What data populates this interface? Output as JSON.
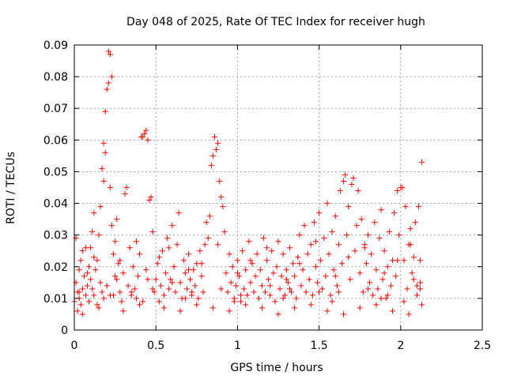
{
  "chart_data": {
    "type": "scatter",
    "title": "Day 048 of 2025, Rate Of TEC Index for receiver hugh",
    "xlabel": "GPS time / hours",
    "ylabel": "ROTI / TECUs",
    "xlim": [
      0,
      2.5
    ],
    "ylim": [
      0,
      0.09
    ],
    "x_ticks": [
      0,
      0.5,
      1,
      1.5,
      2,
      2.5
    ],
    "x_tick_labels": [
      "0",
      "0.5",
      "1",
      "1.5",
      "2",
      "2.5"
    ],
    "y_ticks": [
      0,
      0.01,
      0.02,
      0.03,
      0.04,
      0.05,
      0.06,
      0.07,
      0.08,
      0.09
    ],
    "y_tick_labels": [
      "0",
      "0.01",
      "0.02",
      "0.03",
      "0.04",
      "0.05",
      "0.06",
      "0.07",
      "0.08",
      "0.09"
    ],
    "grid": true,
    "marker": "plus",
    "color": "#ff0000",
    "points": [
      [
        0.0,
        0.009
      ],
      [
        0.01,
        0.015
      ],
      [
        0.01,
        0.029
      ],
      [
        0.02,
        0.012
      ],
      [
        0.02,
        0.006
      ],
      [
        0.03,
        0.019
      ],
      [
        0.03,
        0.01
      ],
      [
        0.04,
        0.022
      ],
      [
        0.04,
        0.008
      ],
      [
        0.05,
        0.013
      ],
      [
        0.05,
        0.025
      ],
      [
        0.06,
        0.017
      ],
      [
        0.07,
        0.011
      ],
      [
        0.07,
        0.026
      ],
      [
        0.08,
        0.014
      ],
      [
        0.09,
        0.02
      ],
      [
        0.09,
        0.009
      ],
      [
        0.1,
        0.016
      ],
      [
        0.11,
        0.013
      ],
      [
        0.11,
        0.031
      ],
      [
        0.12,
        0.037
      ],
      [
        0.12,
        0.011
      ],
      [
        0.13,
        0.019
      ],
      [
        0.14,
        0.022
      ],
      [
        0.14,
        0.008
      ],
      [
        0.15,
        0.03
      ],
      [
        0.16,
        0.015
      ],
      [
        0.16,
        0.039
      ],
      [
        0.17,
        0.051
      ],
      [
        0.17,
        0.012
      ],
      [
        0.18,
        0.047
      ],
      [
        0.18,
        0.059
      ],
      [
        0.19,
        0.056
      ],
      [
        0.19,
        0.069
      ],
      [
        0.2,
        0.076
      ],
      [
        0.21,
        0.078
      ],
      [
        0.21,
        0.088
      ],
      [
        0.22,
        0.087
      ],
      [
        0.23,
        0.08
      ],
      [
        0.22,
        0.045
      ],
      [
        0.23,
        0.033
      ],
      [
        0.24,
        0.024
      ],
      [
        0.24,
        0.011
      ],
      [
        0.25,
        0.028
      ],
      [
        0.26,
        0.035
      ],
      [
        0.26,
        0.016
      ],
      [
        0.27,
        0.021
      ],
      [
        0.28,
        0.012
      ],
      [
        0.29,
        0.009
      ],
      [
        0.3,
        0.018
      ],
      [
        0.31,
        0.043
      ],
      [
        0.32,
        0.045
      ],
      [
        0.33,
        0.014
      ],
      [
        0.34,
        0.026
      ],
      [
        0.35,
        0.011
      ],
      [
        0.36,
        0.02
      ],
      [
        0.37,
        0.013
      ],
      [
        0.38,
        0.01
      ],
      [
        0.39,
        0.017
      ],
      [
        0.4,
        0.024
      ],
      [
        0.41,
        0.061
      ],
      [
        0.42,
        0.061
      ],
      [
        0.43,
        0.062
      ],
      [
        0.44,
        0.063
      ],
      [
        0.45,
        0.06
      ],
      [
        0.44,
        0.019
      ],
      [
        0.46,
        0.041
      ],
      [
        0.47,
        0.042
      ],
      [
        0.48,
        0.031
      ],
      [
        0.49,
        0.012
      ],
      [
        0.5,
        0.016
      ],
      [
        0.51,
        0.021
      ],
      [
        0.52,
        0.009
      ],
      [
        0.53,
        0.014
      ],
      [
        0.54,
        0.025
      ],
      [
        0.55,
        0.011
      ],
      [
        0.56,
        0.018
      ],
      [
        0.57,
        0.029
      ],
      [
        0.58,
        0.013
      ],
      [
        0.59,
        0.016
      ],
      [
        0.6,
        0.033
      ],
      [
        0.61,
        0.02
      ],
      [
        0.62,
        0.012
      ],
      [
        0.63,
        0.027
      ],
      [
        0.64,
        0.037
      ],
      [
        0.65,
        0.015
      ],
      [
        0.66,
        0.01
      ],
      [
        0.67,
        0.022
      ],
      [
        0.68,
        0.018
      ],
      [
        0.69,
        0.013
      ],
      [
        0.7,
        0.024
      ],
      [
        0.71,
        0.016
      ],
      [
        0.72,
        0.011
      ],
      [
        0.73,
        0.019
      ],
      [
        0.74,
        0.014
      ],
      [
        0.75,
        0.021
      ],
      [
        0.76,
        0.01
      ],
      [
        0.77,
        0.025
      ],
      [
        0.78,
        0.017
      ],
      [
        0.79,
        0.012
      ],
      [
        0.8,
        0.027
      ],
      [
        0.81,
        0.034
      ],
      [
        0.82,
        0.029
      ],
      [
        0.83,
        0.036
      ],
      [
        0.84,
        0.052
      ],
      [
        0.85,
        0.055
      ],
      [
        0.86,
        0.061
      ],
      [
        0.87,
        0.057
      ],
      [
        0.88,
        0.059
      ],
      [
        0.89,
        0.047
      ],
      [
        0.9,
        0.042
      ],
      [
        0.91,
        0.039
      ],
      [
        0.92,
        0.031
      ],
      [
        0.93,
        0.018
      ],
      [
        0.94,
        0.012
      ],
      [
        0.95,
        0.024
      ],
      [
        0.96,
        0.015
      ],
      [
        0.97,
        0.02
      ],
      [
        0.98,
        0.01
      ],
      [
        0.99,
        0.014
      ],
      [
        1.0,
        0.022
      ],
      [
        1.01,
        0.017
      ],
      [
        1.02,
        0.009
      ],
      [
        1.03,
        0.025
      ],
      [
        1.04,
        0.013
      ],
      [
        1.05,
        0.019
      ],
      [
        1.06,
        0.011
      ],
      [
        1.07,
        0.028
      ],
      [
        1.08,
        0.015
      ],
      [
        1.09,
        0.021
      ],
      [
        1.1,
        0.012
      ],
      [
        1.11,
        0.017
      ],
      [
        1.12,
        0.024
      ],
      [
        1.13,
        0.01
      ],
      [
        1.14,
        0.019
      ],
      [
        1.15,
        0.014
      ],
      [
        1.16,
        0.029
      ],
      [
        1.17,
        0.012
      ],
      [
        1.18,
        0.022
      ],
      [
        1.19,
        0.016
      ],
      [
        1.2,
        0.011
      ],
      [
        1.21,
        0.025
      ],
      [
        1.22,
        0.018
      ],
      [
        1.23,
        0.009
      ],
      [
        1.24,
        0.02
      ],
      [
        1.25,
        0.028
      ],
      [
        1.26,
        0.013
      ],
      [
        1.27,
        0.017
      ],
      [
        1.28,
        0.024
      ],
      [
        1.29,
        0.011
      ],
      [
        1.3,
        0.019
      ],
      [
        1.31,
        0.015
      ],
      [
        1.32,
        0.026
      ],
      [
        1.33,
        0.012
      ],
      [
        1.34,
        0.021
      ],
      [
        1.35,
        0.017
      ],
      [
        1.36,
        0.01
      ],
      [
        1.37,
        0.023
      ],
      [
        1.38,
        0.03
      ],
      [
        1.39,
        0.014
      ],
      [
        1.4,
        0.019
      ],
      [
        1.41,
        0.033
      ],
      [
        1.42,
        0.012
      ],
      [
        1.43,
        0.024
      ],
      [
        1.44,
        0.016
      ],
      [
        1.45,
        0.027
      ],
      [
        1.46,
        0.011
      ],
      [
        1.47,
        0.034
      ],
      [
        1.48,
        0.02
      ],
      [
        1.49,
        0.015
      ],
      [
        1.5,
        0.037
      ],
      [
        1.51,
        0.022
      ],
      [
        1.52,
        0.013
      ],
      [
        1.53,
        0.029
      ],
      [
        1.54,
        0.017
      ],
      [
        1.55,
        0.04
      ],
      [
        1.56,
        0.024
      ],
      [
        1.57,
        0.011
      ],
      [
        1.58,
        0.031
      ],
      [
        1.59,
        0.019
      ],
      [
        1.6,
        0.036
      ],
      [
        1.61,
        0.014
      ],
      [
        1.62,
        0.027
      ],
      [
        1.63,
        0.044
      ],
      [
        1.64,
        0.021
      ],
      [
        1.65,
        0.047
      ],
      [
        1.66,
        0.049
      ],
      [
        1.67,
        0.03
      ],
      [
        1.68,
        0.039
      ],
      [
        1.69,
        0.016
      ],
      [
        1.7,
        0.046
      ],
      [
        1.71,
        0.048
      ],
      [
        1.72,
        0.025
      ],
      [
        1.73,
        0.033
      ],
      [
        1.74,
        0.044
      ],
      [
        1.75,
        0.018
      ],
      [
        1.76,
        0.035
      ],
      [
        1.77,
        0.012
      ],
      [
        1.78,
        0.027
      ],
      [
        1.79,
        0.021
      ],
      [
        1.8,
        0.03
      ],
      [
        1.81,
        0.015
      ],
      [
        1.82,
        0.024
      ],
      [
        1.83,
        0.011
      ],
      [
        1.84,
        0.034
      ],
      [
        1.85,
        0.019
      ],
      [
        1.86,
        0.013
      ],
      [
        1.87,
        0.029
      ],
      [
        1.88,
        0.038
      ],
      [
        1.89,
        0.016
      ],
      [
        1.9,
        0.025
      ],
      [
        1.91,
        0.01
      ],
      [
        1.92,
        0.02
      ],
      [
        1.93,
        0.031
      ],
      [
        1.94,
        0.014
      ],
      [
        1.95,
        0.022
      ],
      [
        1.96,
        0.037
      ],
      [
        1.97,
        0.017
      ],
      [
        1.98,
        0.044
      ],
      [
        1.99,
        0.03
      ],
      [
        2.0,
        0.045
      ],
      [
        2.01,
        0.045
      ],
      [
        2.02,
        0.022
      ],
      [
        2.03,
        0.039
      ],
      [
        2.04,
        0.013
      ],
      [
        2.05,
        0.027
      ],
      [
        2.06,
        0.032
      ],
      [
        2.07,
        0.018
      ],
      [
        2.08,
        0.023
      ],
      [
        2.09,
        0.034
      ],
      [
        2.1,
        0.011
      ],
      [
        2.11,
        0.039
      ],
      [
        2.12,
        0.022
      ],
      [
        2.13,
        0.053
      ],
      [
        2.12,
        0.015
      ],
      [
        2.13,
        0.008
      ],
      [
        0.05,
        0.005
      ],
      [
        0.15,
        0.007
      ],
      [
        0.3,
        0.006
      ],
      [
        0.4,
        0.008
      ],
      [
        0.55,
        0.007
      ],
      [
        0.65,
        0.006
      ],
      [
        0.75,
        0.008
      ],
      [
        0.85,
        0.007
      ],
      [
        0.95,
        0.006
      ],
      [
        1.05,
        0.008
      ],
      [
        1.15,
        0.007
      ],
      [
        1.25,
        0.005
      ],
      [
        1.35,
        0.007
      ],
      [
        1.45,
        0.008
      ],
      [
        1.55,
        0.006
      ],
      [
        1.65,
        0.005
      ],
      [
        1.75,
        0.007
      ],
      [
        1.85,
        0.008
      ],
      [
        1.95,
        0.006
      ],
      [
        2.05,
        0.005
      ],
      [
        0.2,
        0.014
      ],
      [
        0.35,
        0.012
      ],
      [
        0.6,
        0.015
      ],
      [
        0.9,
        0.013
      ],
      [
        1.2,
        0.014
      ],
      [
        1.5,
        0.012
      ],
      [
        1.8,
        0.013
      ],
      [
        2.1,
        0.014
      ],
      [
        0.08,
        0.018
      ],
      [
        0.25,
        0.017
      ],
      [
        0.45,
        0.016
      ],
      [
        0.7,
        0.019
      ],
      [
        1.0,
        0.018
      ],
      [
        1.3,
        0.016
      ],
      [
        1.6,
        0.017
      ],
      [
        1.9,
        0.018
      ],
      [
        2.08,
        0.016
      ],
      [
        0.12,
        0.023
      ],
      [
        0.28,
        0.022
      ],
      [
        0.52,
        0.023
      ],
      [
        0.78,
        0.021
      ],
      [
        1.08,
        0.022
      ],
      [
        1.38,
        0.021
      ],
      [
        1.68,
        0.023
      ],
      [
        1.98,
        0.022
      ],
      [
        0.18,
        0.01
      ],
      [
        0.42,
        0.009
      ],
      [
        0.68,
        0.01
      ],
      [
        0.98,
        0.009
      ],
      [
        1.28,
        0.01
      ],
      [
        1.58,
        0.009
      ],
      [
        1.88,
        0.01
      ],
      [
        2.02,
        0.009
      ],
      [
        0.03,
        0.012
      ],
      [
        0.22,
        0.011
      ],
      [
        0.48,
        0.013
      ],
      [
        0.72,
        0.012
      ],
      [
        1.02,
        0.011
      ],
      [
        1.32,
        0.013
      ],
      [
        1.62,
        0.012
      ],
      [
        1.92,
        0.011
      ],
      [
        2.12,
        0.013
      ],
      [
        0.1,
        0.026
      ],
      [
        0.38,
        0.028
      ],
      [
        0.58,
        0.026
      ],
      [
        0.88,
        0.027
      ],
      [
        1.18,
        0.026
      ],
      [
        1.48,
        0.028
      ],
      [
        1.78,
        0.026
      ],
      [
        2.06,
        0.027
      ]
    ]
  }
}
